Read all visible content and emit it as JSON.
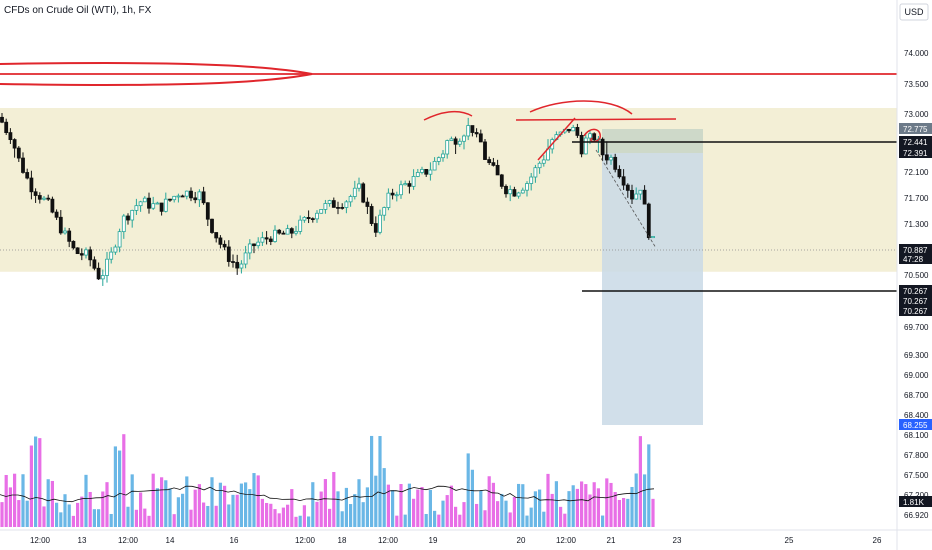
{
  "header": {
    "title": "CFDs on Crude Oil (WTI), 1h, FX",
    "currency": "USD"
  },
  "colors": {
    "up": "#26a69a",
    "down": "#111111",
    "zone": "#f3efd6",
    "target_zone": "#c9d9e6",
    "stop_zone": "#c2d1c4",
    "annotation": "#e0262c",
    "volume_up": "#6ab7e6",
    "volume_down": "#e86fe6"
  },
  "chart_data": {
    "type": "candlestick",
    "symbol": "CFDs on Crude Oil (WTI)",
    "interval": "1h",
    "ylim": [
      66.75,
      74.45
    ],
    "y_ticks": [
      {
        "value": 74.0,
        "label": "74.000"
      },
      {
        "value": 73.5,
        "label": "73.500"
      },
      {
        "value": 73.0,
        "label": "73.000"
      },
      {
        "value": 72.1,
        "label": "72.100"
      },
      {
        "value": 71.7,
        "label": "71.700"
      },
      {
        "value": 71.3,
        "label": "71.300"
      },
      {
        "value": 70.5,
        "label": "70.500"
      },
      {
        "value": 69.7,
        "label": "69.700"
      },
      {
        "value": 69.3,
        "label": "69.300"
      },
      {
        "value": 69.0,
        "label": "69.000"
      },
      {
        "value": 68.7,
        "label": "68.700"
      },
      {
        "value": 68.4,
        "label": "68.400"
      },
      {
        "value": 68.1,
        "label": "68.100"
      },
      {
        "value": 67.8,
        "label": "67.800"
      },
      {
        "value": 67.5,
        "label": "67.500"
      },
      {
        "value": 67.2,
        "label": "67.200"
      },
      {
        "value": 66.92,
        "label": "66.920"
      }
    ],
    "x_ticks": [
      "12:00",
      "13",
      "12:00",
      "14",
      "16",
      "12:00",
      "18",
      "12:00",
      "19",
      "20",
      "12:00",
      "21",
      "23",
      "25",
      "26"
    ],
    "price_tags": [
      {
        "value": 72.775,
        "label": "72.775",
        "color": "#6c7a89"
      },
      {
        "value": 72.441,
        "label": "72.441",
        "color": "#131722"
      },
      {
        "value": 72.391,
        "label": "72.391",
        "color": "#131722"
      },
      {
        "value": 70.887,
        "label": "70.887",
        "color": "#131722"
      },
      {
        "value": 70.267,
        "label": "70.267",
        "color": "#131722"
      },
      {
        "value": 68.255,
        "label": "68.255",
        "color": "#2962ff"
      }
    ],
    "countdown": "47:28",
    "volume_label": "1.81K",
    "zones": {
      "supply_demand": [
        70.55,
        73.1
      ],
      "position_entry": 72.391,
      "position_stop": 72.775,
      "position_target": 68.255
    },
    "levels": [
      {
        "value": 73.5,
        "name": "red-horizontal-resistance"
      },
      {
        "value": 72.441,
        "name": "black-horizontal-line"
      },
      {
        "value": 70.267,
        "name": "black-horizontal-target-line"
      }
    ]
  }
}
